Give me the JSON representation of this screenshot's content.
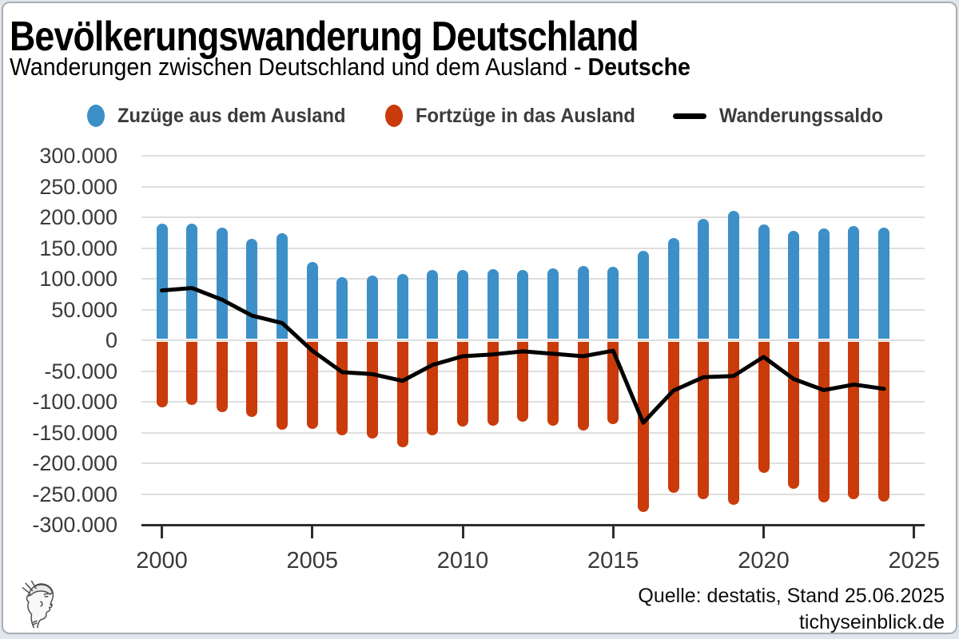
{
  "page": {
    "title": "Bevölkerungswanderung Deutschland",
    "subtitle_regular": "Wanderungen zwischen Deutschland und dem Ausland - ",
    "subtitle_bold": "Deutsche",
    "source_line1": "Quelle: destatis, Stand 25.06.2025",
    "source_line2": "tichyseinblick.de"
  },
  "colors": {
    "zuzuege_blue": "#3D90C7",
    "fortzuege_red": "#CA3B0C",
    "saldo_black": "#000000",
    "gridline": "#DEDEDE",
    "axis_dark": "#2D2D2D",
    "tick_label": "#3A3A3A",
    "legend_text": "#3C3C3C",
    "border_gray": "#A9AEB3"
  },
  "chart_data": {
    "type": "bar",
    "title": "Bevölkerungswanderung Deutschland",
    "subtitle": "Wanderungen zwischen Deutschland und dem Ausland - Deutsche",
    "categories": [
      2000,
      2001,
      2002,
      2003,
      2004,
      2005,
      2006,
      2007,
      2008,
      2009,
      2010,
      2011,
      2012,
      2013,
      2014,
      2015,
      2016,
      2017,
      2018,
      2019,
      2020,
      2021,
      2022,
      2023,
      2024
    ],
    "series": [
      {
        "name": "Zuzüge aus dem Ausland",
        "render": "bar",
        "color": "#3D90C7",
        "values": [
          190000,
          190000,
          183000,
          165000,
          174000,
          127000,
          103000,
          105000,
          108000,
          114000,
          114000,
          116000,
          114000,
          117000,
          121000,
          120000,
          145000,
          166000,
          198000,
          210000,
          188000,
          178000,
          182000,
          186000,
          183000
        ]
      },
      {
        "name": "Fortzüge in das Ausland",
        "render": "bar",
        "color": "#CA3B0C",
        "values": [
          -109000,
          -105000,
          -117000,
          -125000,
          -146000,
          -144000,
          -155000,
          -160000,
          -174000,
          -154000,
          -140000,
          -139000,
          -132000,
          -139000,
          -147000,
          -137000,
          -279000,
          -248000,
          -258000,
          -268000,
          -215000,
          -241000,
          -263000,
          -258000,
          -262000
        ]
      },
      {
        "name": "Wanderungssaldo",
        "render": "line",
        "color": "#000000",
        "values": [
          81000,
          85000,
          66000,
          40000,
          28000,
          -17000,
          -52000,
          -55000,
          -66000,
          -40000,
          -26000,
          -23000,
          -18000,
          -22000,
          -26000,
          -17000,
          -134000,
          -82000,
          -60000,
          -58000,
          -27000,
          -63000,
          -81000,
          -72000,
          -79000
        ]
      }
    ],
    "ylim": [
      -300000,
      300000
    ],
    "ytick_step": 50000,
    "ytick_labels": [
      "300.000",
      "250.000",
      "200.000",
      "150.000",
      "100.000",
      "50.000",
      "0",
      "-50.000",
      "-100.000",
      "-150.000",
      "-200.000",
      "-250.000",
      "-300.000"
    ],
    "xtick_years": [
      2000,
      2005,
      2010,
      2015,
      2020,
      2025
    ],
    "xtick_labels": [
      "2000",
      "2005",
      "2010",
      "2015",
      "2020",
      "2025"
    ],
    "grid": "horizontal",
    "legend_position": "top"
  }
}
